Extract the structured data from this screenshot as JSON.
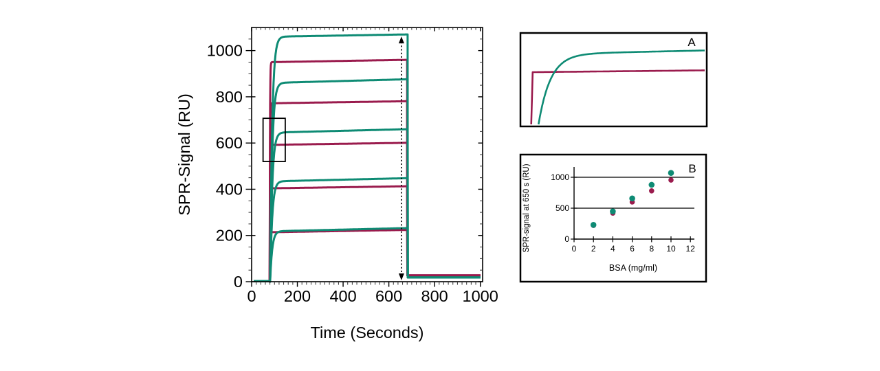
{
  "figure": {
    "background": "#ffffff",
    "colors": {
      "teal": "#0e8b74",
      "maroon": "#9a1b4d",
      "axis": "#000000",
      "minor_tick": "#333333"
    }
  },
  "chart_data": [
    {
      "id": "main",
      "type": "line",
      "xlabel": "Time (Seconds)",
      "ylabel": "SPR-Signal (RU)",
      "xlim": [
        0,
        1010
      ],
      "ylim": [
        0,
        1100
      ],
      "xticks": [
        0,
        200,
        400,
        600,
        800,
        1000
      ],
      "yticks": [
        0,
        200,
        400,
        600,
        800,
        1000
      ],
      "xtick_minor_step": 20,
      "ytick_minor_step": 50,
      "baseline_ru": 2,
      "post_dissociation_ru": {
        "teal": 18,
        "maroon": 27
      },
      "injection_start_s": 80,
      "injection_end_s": 682,
      "series": [
        {
          "color": "maroon",
          "plateau_start": 950,
          "plateau_end": 960,
          "rise_tau_s": 1.2
        },
        {
          "color": "maroon",
          "plateau_start": 772,
          "plateau_end": 781,
          "rise_tau_s": 1.2
        },
        {
          "color": "maroon",
          "plateau_start": 592,
          "plateau_end": 601,
          "rise_tau_s": 1.2
        },
        {
          "color": "maroon",
          "plateau_start": 404,
          "plateau_end": 413,
          "rise_tau_s": 1.2
        },
        {
          "color": "maroon",
          "plateau_start": 214,
          "plateau_end": 224,
          "rise_tau_s": 1.2
        },
        {
          "color": "teal",
          "plateau_start": 1060,
          "plateau_end": 1070,
          "rise_tau_s": 9
        },
        {
          "color": "teal",
          "plateau_start": 860,
          "plateau_end": 876,
          "rise_tau_s": 9
        },
        {
          "color": "teal",
          "plateau_start": 645,
          "plateau_end": 660,
          "rise_tau_s": 9
        },
        {
          "color": "teal",
          "plateau_start": 434,
          "plateau_end": 448,
          "rise_tau_s": 9
        },
        {
          "color": "teal",
          "plateau_start": 218,
          "plateau_end": 232,
          "rise_tau_s": 9
        }
      ],
      "annotations": {
        "zoom_rectangle": {
          "x": [
            50,
            147
          ],
          "y": [
            520,
            707
          ]
        },
        "readout_arrow": {
          "x": 655,
          "y": [
            12,
            1055
          ],
          "style": "dotted-double-arrow"
        }
      }
    },
    {
      "id": "inset_A",
      "type": "line",
      "label": "A",
      "series": [
        {
          "color": "maroon",
          "rise_at_frac": 0.048,
          "rise_width_frac": 0.008,
          "level_start_frac": 0.58,
          "level_end_frac": 0.6
        },
        {
          "color": "teal",
          "rise_at_frac": 0.088,
          "tau_frac": 0.065,
          "level_start_frac": 0.78,
          "level_end_frac": 0.825
        }
      ]
    },
    {
      "id": "inset_B",
      "type": "scatter",
      "label": "B",
      "xlabel": "BSA (mg/ml)",
      "ylabel": "SPR-signal at 650 s (RU)",
      "xlim": [
        0,
        13
      ],
      "ylim": [
        0,
        1250
      ],
      "xticks": [
        0,
        2,
        4,
        6,
        8,
        10,
        12
      ],
      "yticks": [
        0,
        500,
        1000
      ],
      "gridlines_y": [
        500,
        1000
      ],
      "series": [
        {
          "color": "maroon",
          "points": [
            [
              2,
              222
            ],
            [
              4,
              420
            ],
            [
              6,
              600
            ],
            [
              8,
              780
            ],
            [
              10,
              955
            ]
          ]
        },
        {
          "color": "teal",
          "points": [
            [
              2,
              230
            ],
            [
              4,
              448
            ],
            [
              6,
              658
            ],
            [
              8,
              878
            ],
            [
              10,
              1070
            ]
          ]
        }
      ]
    }
  ]
}
